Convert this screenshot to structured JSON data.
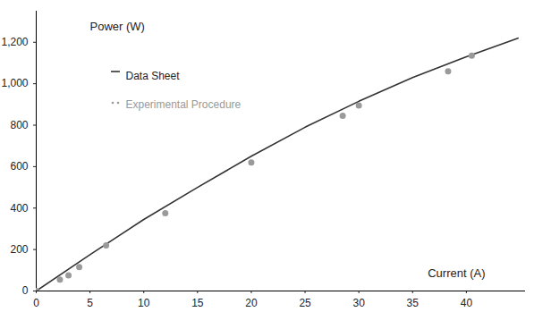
{
  "chart_data": {
    "type": "line",
    "x_label": "Current (A)",
    "y_label": "Power (W)",
    "xlim": [
      0,
      45.5
    ],
    "xticks": [
      0,
      5,
      10,
      15,
      20,
      25,
      30,
      35,
      40
    ],
    "ylim": [
      0,
      1350
    ],
    "yticks": [
      0,
      200,
      400,
      600,
      800,
      1000,
      1200
    ],
    "grid": false,
    "series": [
      {
        "name": "Data Sheet",
        "type": "line",
        "color": "#333333",
        "line_style": "solid",
        "x": [
          0,
          5,
          10,
          15,
          20,
          25,
          30,
          35,
          40,
          44.8
        ],
        "values": [
          0,
          175,
          345,
          500,
          650,
          790,
          915,
          1030,
          1130,
          1220
        ]
      },
      {
        "name": "Experimental Procedure",
        "type": "scatter",
        "color": "#9a9a9a",
        "marker": "circle",
        "x": [
          0,
          2.2,
          3,
          4,
          6.5,
          12,
          20,
          28.5,
          30,
          38.3,
          40.5
        ],
        "values": [
          0,
          55,
          75,
          115,
          220,
          375,
          620,
          845,
          895,
          1060,
          1135
        ]
      }
    ]
  }
}
